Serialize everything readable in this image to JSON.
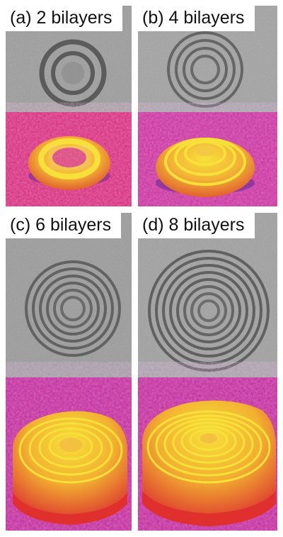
{
  "panels": [
    {
      "id": "a",
      "label": "(a) 2 bilayers",
      "bilayers": 2
    },
    {
      "id": "b",
      "label": "(b) 4 bilayers",
      "bilayers": 4
    },
    {
      "id": "c",
      "label": "(c) 6 bilayers",
      "bilayers": 6
    },
    {
      "id": "d",
      "label": "(d) 8 bilayers",
      "bilayers": 8
    }
  ],
  "colors": {
    "micrograph_bg": "#9c9c9c",
    "ring_dark": "#4a4a4a",
    "surface_magenta": "#d42a78",
    "surface_purple": "#7a2a9a",
    "surface_orange": "#f08a30",
    "surface_yellow": "#f7e03a"
  }
}
